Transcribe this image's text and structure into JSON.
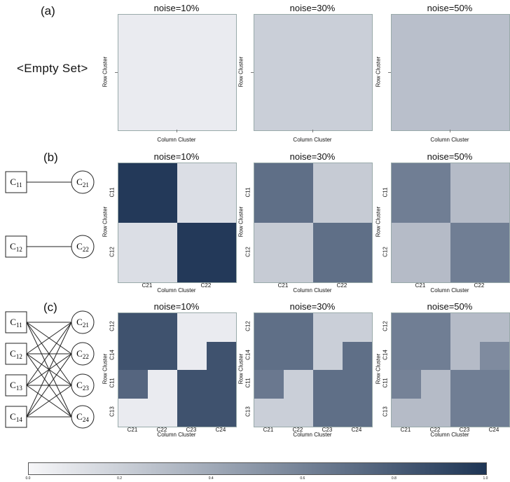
{
  "panel_labels": {
    "a": "(a)",
    "b": "(b)",
    "c": "(c)"
  },
  "empty_set": "<Empty Set>",
  "axis_labels": {
    "x": "Column Cluster",
    "y": "Row Cluster"
  },
  "colors": {
    "low": "#f5f5f8",
    "high": "#1f3556"
  },
  "diagram_b": {
    "left": [
      "C11",
      "C12"
    ],
    "right": [
      "C21",
      "C22"
    ],
    "edges": [
      [
        0,
        0
      ],
      [
        1,
        1
      ]
    ]
  },
  "diagram_c": {
    "left": [
      "C11",
      "C12",
      "C13",
      "C14"
    ],
    "right": [
      "C21",
      "C22",
      "C23",
      "C24"
    ],
    "edges": [
      [
        0,
        0
      ],
      [
        0,
        1
      ],
      [
        0,
        2
      ],
      [
        0,
        3
      ],
      [
        1,
        0
      ],
      [
        1,
        1
      ],
      [
        1,
        2
      ],
      [
        1,
        3
      ],
      [
        2,
        0
      ],
      [
        2,
        1
      ],
      [
        2,
        2
      ],
      [
        2,
        3
      ],
      [
        3,
        0
      ],
      [
        3,
        1
      ],
      [
        3,
        2
      ],
      [
        3,
        3
      ]
    ]
  },
  "colorbar": {
    "ticks": [
      "0.0",
      "0.2",
      "0.4",
      "0.6",
      "0.8",
      "1.0"
    ],
    "min": 0,
    "max": 1
  },
  "chart_data": [
    {
      "type": "heatmap",
      "panel": "a",
      "title": "noise=10%",
      "xlabel": "Column Cluster",
      "ylabel": "Row Cluster",
      "rows": [],
      "cols": [],
      "values": [
        [
          0.05
        ]
      ]
    },
    {
      "type": "heatmap",
      "panel": "a",
      "title": "noise=30%",
      "xlabel": "Column Cluster",
      "ylabel": "Row Cluster",
      "rows": [],
      "cols": [],
      "values": [
        [
          0.2
        ]
      ]
    },
    {
      "type": "heatmap",
      "panel": "a",
      "title": "noise=50%",
      "xlabel": "Column Cluster",
      "ylabel": "Row Cluster",
      "rows": [],
      "cols": [],
      "values": [
        [
          0.28
        ]
      ]
    },
    {
      "type": "heatmap",
      "panel": "b",
      "title": "noise=10%",
      "xlabel": "Column Cluster",
      "ylabel": "Row Cluster",
      "rows": [
        "C11",
        "C12"
      ],
      "cols": [
        "C21",
        "C22"
      ],
      "values": [
        [
          0.98,
          0.12
        ],
        [
          0.12,
          0.98
        ]
      ]
    },
    {
      "type": "heatmap",
      "panel": "b",
      "title": "noise=30%",
      "xlabel": "Column Cluster",
      "ylabel": "Row Cluster",
      "rows": [
        "C11",
        "C12"
      ],
      "cols": [
        "C21",
        "C22"
      ],
      "values": [
        [
          0.7,
          0.22
        ],
        [
          0.22,
          0.7
        ]
      ]
    },
    {
      "type": "heatmap",
      "panel": "b",
      "title": "noise=50%",
      "xlabel": "Column Cluster",
      "ylabel": "Row Cluster",
      "rows": [
        "C11",
        "C12"
      ],
      "cols": [
        "C21",
        "C22"
      ],
      "values": [
        [
          0.62,
          0.3
        ],
        [
          0.3,
          0.62
        ]
      ]
    },
    {
      "type": "heatmap",
      "panel": "c",
      "title": "noise=10%",
      "xlabel": "Column Cluster",
      "ylabel": "Row Cluster",
      "rows": [
        "C12",
        "C14",
        "C11",
        "C13"
      ],
      "cols": [
        "C21",
        "C22",
        "C23",
        "C24"
      ],
      "values": [
        [
          0.85,
          0.85,
          0.05,
          0.05
        ],
        [
          0.85,
          0.85,
          0.05,
          0.85
        ],
        [
          0.75,
          0.05,
          0.85,
          0.85
        ],
        [
          0.05,
          0.05,
          0.85,
          0.85
        ]
      ]
    },
    {
      "type": "heatmap",
      "panel": "c",
      "title": "noise=30%",
      "xlabel": "Column Cluster",
      "ylabel": "Row Cluster",
      "rows": [
        "C12",
        "C14",
        "C11",
        "C13"
      ],
      "cols": [
        "C21",
        "C22",
        "C23",
        "C24"
      ],
      "values": [
        [
          0.7,
          0.7,
          0.2,
          0.2
        ],
        [
          0.7,
          0.7,
          0.2,
          0.7
        ],
        [
          0.65,
          0.2,
          0.7,
          0.7
        ],
        [
          0.2,
          0.2,
          0.7,
          0.7
        ]
      ]
    },
    {
      "type": "heatmap",
      "panel": "c",
      "title": "noise=50%",
      "xlabel": "Column Cluster",
      "ylabel": "Row Cluster",
      "rows": [
        "C12",
        "C14",
        "C11",
        "C13"
      ],
      "cols": [
        "C21",
        "C22",
        "C23",
        "C24"
      ],
      "values": [
        [
          0.62,
          0.62,
          0.3,
          0.3
        ],
        [
          0.62,
          0.62,
          0.3,
          0.55
        ],
        [
          0.6,
          0.3,
          0.62,
          0.62
        ],
        [
          0.3,
          0.3,
          0.62,
          0.62
        ]
      ]
    }
  ]
}
